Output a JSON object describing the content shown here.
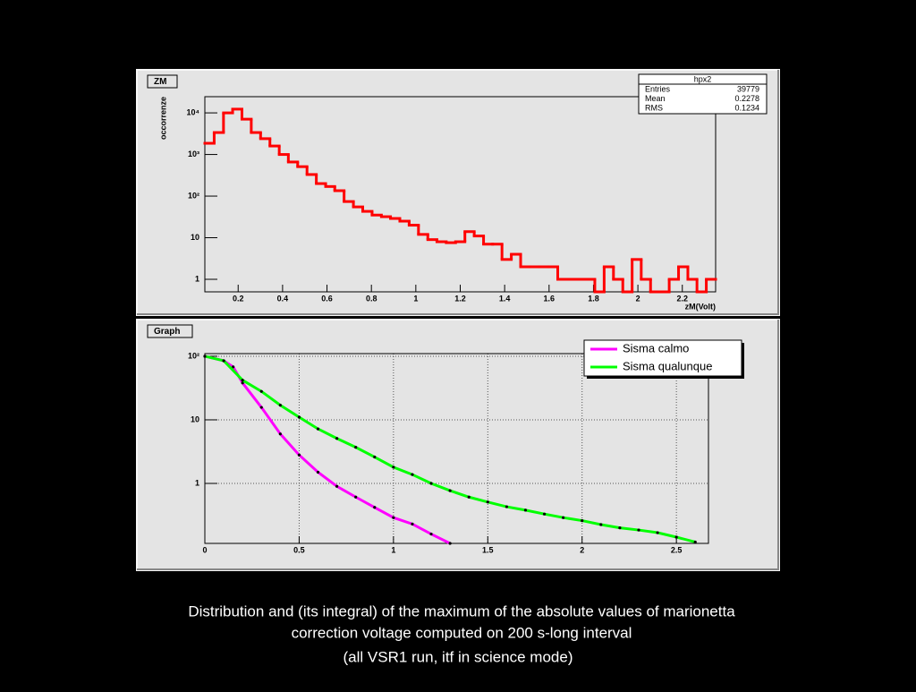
{
  "chart_data": [
    {
      "type": "histogram",
      "pad_label": "ZM",
      "y_label": "occorrenze",
      "x_label": "zM(Volt)",
      "color": "#ff0000",
      "log_y": true,
      "bins": [
        0.05,
        0.092,
        0.134,
        0.175,
        0.217,
        0.259,
        0.301,
        0.343,
        0.385,
        0.426,
        0.468,
        0.51,
        0.552,
        0.594,
        0.635,
        0.677,
        0.719,
        0.761,
        0.803,
        0.845,
        0.886,
        0.928,
        0.97,
        1.012,
        1.054,
        1.095,
        1.137,
        1.179,
        1.221,
        1.263,
        1.305,
        1.346,
        1.388,
        1.43,
        1.472,
        1.514,
        1.555,
        1.597,
        1.639,
        1.681,
        1.723,
        1.765,
        1.806,
        1.848,
        1.89,
        1.932,
        1.974,
        2.015,
        2.057,
        2.099,
        2.141,
        2.183,
        2.225,
        2.266,
        2.308,
        2.35
      ],
      "values": [
        1860,
        3370,
        10000,
        12300,
        7060,
        3370,
        2400,
        1600,
        1000,
        660,
        510,
        330,
        200,
        170,
        135,
        74,
        55,
        43,
        35,
        32,
        29,
        25,
        20,
        12,
        9,
        8,
        7.6,
        8,
        14,
        11,
        7,
        7,
        3,
        4,
        2,
        2,
        2,
        2,
        1,
        1,
        1,
        1,
        0,
        2,
        1,
        0,
        3,
        1,
        0,
        0,
        1,
        2,
        1,
        0,
        1
      ],
      "xlim": [
        0.05,
        2.35
      ],
      "ylim": [
        0.5,
        24500
      ],
      "xticks": [
        0.2,
        0.4,
        0.6,
        0.8,
        1,
        1.2,
        1.4,
        1.6,
        1.8,
        2,
        2.2
      ],
      "yticks": [
        1,
        10,
        {
          "value": 100,
          "label": "10²"
        },
        {
          "value": 1000,
          "label": "10³"
        },
        {
          "value": 10000,
          "label": "10⁴"
        }
      ],
      "stats": {
        "title": "hpx2",
        "rows": [
          [
            "Entries",
            "39779"
          ],
          [
            "Mean",
            "0.2278"
          ],
          [
            "RMS",
            "0.1234"
          ]
        ]
      }
    },
    {
      "type": "line",
      "pad_label": "Graph",
      "log_y": true,
      "grid": true,
      "legend": "top-right",
      "xlim": [
        0,
        2.67
      ],
      "ylim": [
        0.114,
        110
      ],
      "xticks": [
        0,
        0.5,
        1,
        1.5,
        2,
        2.5
      ],
      "yticks": [
        1,
        10,
        {
          "value": 100,
          "label": "10²"
        }
      ],
      "series": [
        {
          "name": "Sisma calmo",
          "color": "#ff00ff",
          "x": [
            0,
            0.1,
            0.15,
            0.2,
            0.3,
            0.4,
            0.5,
            0.6,
            0.7,
            0.8,
            0.9,
            1.0,
            1.1,
            1.2,
            1.3
          ],
          "values": [
            100,
            85,
            68,
            38,
            15.7,
            6,
            2.8,
            1.5,
            0.9,
            0.61,
            0.42,
            0.29,
            0.23,
            0.16,
            0.114
          ]
        },
        {
          "name": "Sisma qualunque",
          "color": "#00ff00",
          "x": [
            0,
            0.1,
            0.2,
            0.3,
            0.4,
            0.5,
            0.6,
            0.7,
            0.8,
            0.9,
            1.0,
            1.1,
            1.2,
            1.3,
            1.4,
            1.5,
            1.6,
            1.7,
            1.8,
            1.9,
            2.0,
            2.1,
            2.2,
            2.3,
            2.4,
            2.5,
            2.6
          ],
          "values": [
            100,
            85,
            42,
            28,
            17,
            11,
            7.2,
            5.1,
            3.7,
            2.6,
            1.8,
            1.38,
            1.0,
            0.77,
            0.61,
            0.51,
            0.43,
            0.38,
            0.33,
            0.29,
            0.26,
            0.225,
            0.2,
            0.185,
            0.168,
            0.143,
            0.12
          ]
        }
      ]
    }
  ],
  "caption": [
    "Distribution and (its integral) of the maximum of the absolute values of marionetta",
    "correction voltage computed on 200 s-long interval",
    "(all VSR1 run, itf in science mode)"
  ]
}
